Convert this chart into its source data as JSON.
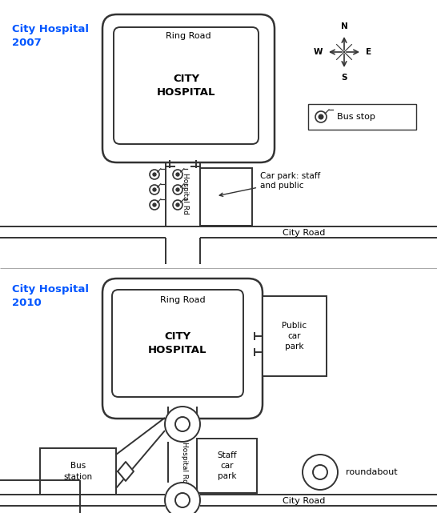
{
  "title_2007": "City Hospital\n2007",
  "title_2010": "City Hospital\n2010",
  "title_color": "#0055FF",
  "background_color": "#FFFFFF",
  "road_color": "#333333",
  "label_ring_road": "Ring Road",
  "label_city_road": "City Road",
  "label_hospital_rd": "Hospital Rd",
  "label_hospital": "CITY\nHOSPITAL",
  "label_car_park_2007": "Car park: staff\nand public",
  "label_public_car_park": "Public\ncar\npark",
  "label_staff_car_park": "Staff\ncar\npark",
  "label_bus_station": "Bus\nstation",
  "label_bus_stop": "Bus stop",
  "label_roundabout": "roundabout",
  "figsize": [
    5.46,
    6.41
  ],
  "dpi": 100
}
